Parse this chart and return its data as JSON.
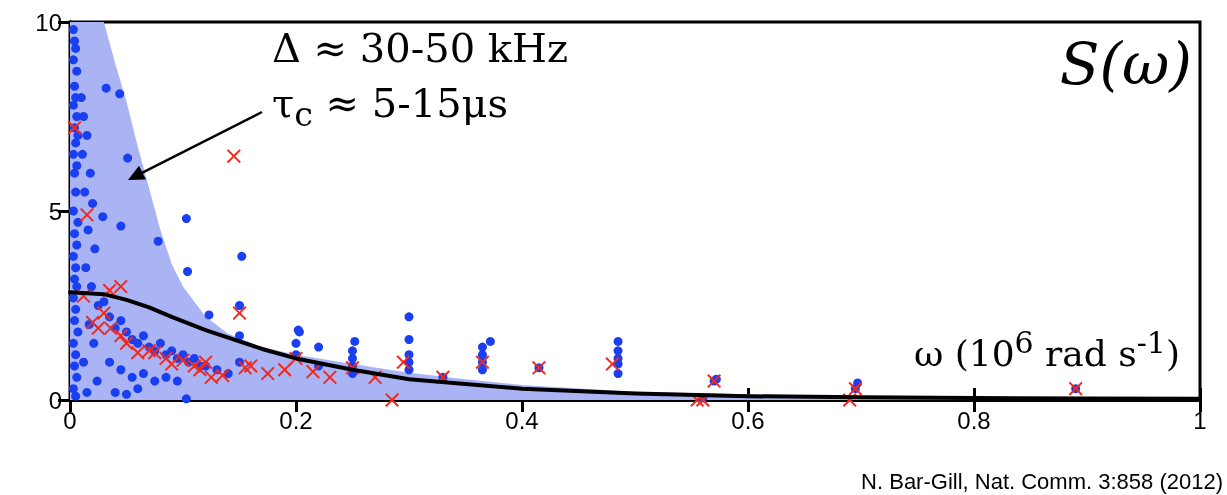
{
  "chart_data": {
    "type": "scatter",
    "xlabel": "ω (10$^{6}$ rad s$^{-1}$)",
    "xlim": [
      0,
      1
    ],
    "xticks": [
      0,
      0.2,
      0.4,
      0.6,
      0.8,
      1
    ],
    "ylim": [
      0,
      10
    ],
    "yticks": [
      0,
      5,
      10
    ],
    "grid": false,
    "annotations": [
      "Δ ≈ 30-50 kHz",
      "τ$_{c}$ ≈ 5-15μs",
      "S(ω)",
      "N. Bar-Gill, Nat. Comm. 3:858 (2012)"
    ],
    "series": [
      {
        "type": "area",
        "color": "#aab4f5",
        "marker": "none",
        "x": [
          0,
          0.03,
          0.04,
          0.05,
          0.06,
          0.07,
          0.08,
          0.09,
          0.1,
          0.12,
          0.14,
          0.17,
          0.2,
          0.25,
          0.3,
          0.35,
          0.4,
          0.5,
          0.6,
          0.7,
          0.8,
          0.9,
          1
        ],
        "values": [
          10,
          10,
          8.9,
          7.9,
          6.7,
          5.6,
          4.5,
          3.6,
          3.0,
          2.2,
          1.75,
          1.4,
          1.2,
          0.95,
          0.72,
          0.55,
          0.4,
          0.22,
          0.15,
          0.1,
          0.08,
          0.07,
          0.06
        ]
      },
      {
        "type": "line",
        "color": "#000000",
        "marker": "none",
        "line_style": "solid",
        "x": [
          0,
          0.03,
          0.05,
          0.07,
          0.09,
          0.12,
          0.17,
          0.2,
          0.25,
          0.3,
          0.4,
          0.5,
          0.6,
          0.7,
          0.8,
          0.9,
          1
        ],
        "values": [
          2.85,
          2.8,
          2.65,
          2.45,
          2.2,
          1.85,
          1.35,
          1.1,
          0.8,
          0.55,
          0.3,
          0.17,
          0.1,
          0.07,
          0.05,
          0.04,
          0.03
        ]
      },
      {
        "color": "#1a3ff0",
        "marker": "circle",
        "x": [
          0.003,
          0.004,
          0.005,
          0.003,
          0.006,
          0.004,
          0.005,
          0.003,
          0.006,
          0.004,
          0.007,
          0.005,
          0.003,
          0.006,
          0.004,
          0.005,
          0.003,
          0.007,
          0.004,
          0.006,
          0.003,
          0.005,
          0.004,
          0.006,
          0.003,
          0.005,
          0.004,
          0.007,
          0.003,
          0.005,
          0.004,
          0.006,
          0.003,
          0.005,
          0.01,
          0.012,
          0.015,
          0.011,
          0.018,
          0.013,
          0.02,
          0.016,
          0.022,
          0.014,
          0.019,
          0.025,
          0.017,
          0.021,
          0.012,
          0.024,
          0.015,
          0.032,
          0.044,
          0.051,
          0.029,
          0.045,
          0.078,
          0.103,
          0.104,
          0.123,
          0.152,
          0.202,
          0.203,
          0.03,
          0.035,
          0.04,
          0.045,
          0.05,
          0.055,
          0.06,
          0.065,
          0.07,
          0.075,
          0.08,
          0.085,
          0.09,
          0.095,
          0.1,
          0.105,
          0.11,
          0.115,
          0.12,
          0.13,
          0.14,
          0.035,
          0.045,
          0.055,
          0.065,
          0.075,
          0.085,
          0.095,
          0.103,
          0.06,
          0.04,
          0.05,
          0.15,
          0.15,
          0.15,
          0.2,
          0.2,
          0.22,
          0.22,
          0.252,
          0.25,
          0.25,
          0.25,
          0.25,
          0.3,
          0.3,
          0.3,
          0.3,
          0.3,
          0.33,
          0.372,
          0.365,
          0.365,
          0.365,
          0.365,
          0.415,
          0.485,
          0.485,
          0.485,
          0.485,
          0.485,
          0.57,
          0.572,
          0.56,
          0.695,
          0.697,
          0.89
        ],
        "values": [
          9.8,
          9.5,
          9.3,
          9.0,
          8.7,
          8.3,
          8.0,
          7.8,
          7.5,
          7.2,
          7.0,
          6.8,
          6.5,
          6.2,
          6.0,
          5.5,
          5.0,
          4.7,
          4.4,
          4.1,
          3.8,
          3.5,
          3.2,
          3.0,
          2.7,
          2.4,
          2.1,
          1.8,
          1.5,
          1.2,
          0.9,
          0.6,
          0.3,
          0.1,
          8.0,
          7.5,
          7.0,
          6.5,
          6.0,
          5.5,
          5.2,
          4.5,
          4.0,
          3.5,
          3.0,
          2.5,
          2.0,
          1.5,
          1.0,
          0.5,
          0.2,
          8.25,
          8.1,
          6.4,
          4.85,
          4.6,
          4.2,
          4.8,
          3.4,
          2.25,
          3.8,
          1.85,
          1.8,
          2.6,
          2.2,
          1.9,
          2.1,
          1.8,
          1.6,
          1.5,
          1.7,
          1.4,
          1.3,
          1.5,
          1.2,
          1.3,
          1.1,
          1.2,
          1.0,
          1.1,
          0.9,
          0.9,
          0.8,
          0.7,
          1.0,
          0.8,
          0.6,
          0.7,
          0.5,
          0.6,
          0.5,
          0.03,
          0.3,
          0.2,
          0.15,
          2.5,
          1.7,
          1.0,
          1.5,
          1.2,
          1.4,
          0.9,
          1.55,
          1.3,
          1.1,
          0.9,
          0.7,
          2.2,
          1.6,
          1.2,
          1.0,
          0.8,
          0.6,
          1.55,
          1.4,
          1.2,
          1.0,
          0.8,
          0.85,
          1.55,
          1.3,
          1.1,
          0.95,
          0.7,
          0.5,
          0.55,
          0.05,
          0.3,
          0.45,
          0.3
        ]
      },
      {
        "color": "#f02a1e",
        "marker": "cross",
        "x": [
          0.004,
          0.015,
          0.012,
          0.02,
          0.035,
          0.045,
          0.03,
          0.025,
          0.036,
          0.045,
          0.05,
          0.06,
          0.07,
          0.075,
          0.085,
          0.09,
          0.1,
          0.11,
          0.115,
          0.12,
          0.125,
          0.135,
          0.145,
          0.15,
          0.155,
          0.16,
          0.175,
          0.19,
          0.2,
          0.215,
          0.23,
          0.25,
          0.27,
          0.285,
          0.295,
          0.33,
          0.365,
          0.415,
          0.48,
          0.555,
          0.56,
          0.57,
          0.69,
          0.695,
          0.89
        ],
        "values": [
          7.2,
          4.9,
          2.75,
          2.05,
          2.9,
          3.0,
          2.3,
          1.9,
          1.9,
          1.7,
          1.5,
          1.25,
          1.3,
          1.25,
          1.1,
          0.95,
          1.05,
          0.9,
          0.8,
          1.0,
          0.6,
          0.65,
          6.45,
          2.3,
          0.85,
          0.9,
          0.7,
          0.8,
          1.1,
          0.75,
          0.6,
          0.85,
          0.6,
          0.0,
          1.0,
          0.6,
          1.0,
          0.85,
          0.95,
          0.0,
          0.0,
          0.5,
          0.0,
          0.3,
          0.3
        ]
      }
    ]
  }
}
